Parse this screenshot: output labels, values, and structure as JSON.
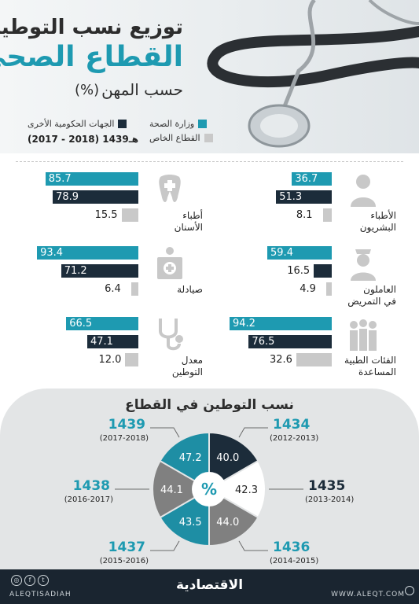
{
  "title": {
    "line1": "توزيع نسب التوطين في",
    "line2": "القطاع الصحي",
    "line3": "حسب المهن",
    "unit": "(%)"
  },
  "legend": {
    "moh": "وزارة الصحة",
    "gov": "الجهات الحكومية الأخرى",
    "private": "القطاع الخاص",
    "period": "(2017 - 2018) 1439هـ"
  },
  "colors": {
    "moh": "#1e9ab1",
    "gov": "#1c2c3a",
    "private": "#c9c9c9",
    "pie_teal": "#1e8ea4",
    "pie_navy": "#1c2c3a",
    "pie_gray": "#808080",
    "pie_light": "#ffffff"
  },
  "chart_data": [
    {
      "type": "bar",
      "series_names": [
        "وزارة الصحة",
        "الجهات الحكومية الأخرى",
        "القطاع الخاص"
      ],
      "groups": [
        {
          "label": "الأطباء\nالبشريون",
          "icon": "doctor-icon",
          "values": [
            36.7,
            51.3,
            8.1
          ],
          "labels": [
            "36.7",
            "51.3",
            "8.1"
          ]
        },
        {
          "label": "أطباء\nالأسنان",
          "icon": "tooth-icon",
          "values": [
            85.7,
            78.9,
            15.5
          ],
          "labels": [
            "85.7",
            "78.9",
            "15.5"
          ]
        },
        {
          "label": "العاملون\nفي التمريض",
          "icon": "nurse-icon",
          "values": [
            59.4,
            16.5,
            4.9
          ],
          "labels": [
            "59.4",
            "16.5",
            "4.9"
          ]
        },
        {
          "label": "صيادلة",
          "icon": "pharmacy-icon",
          "values": [
            93.4,
            71.2,
            6.4
          ],
          "labels": [
            "93.4",
            "71.2",
            "6.4"
          ]
        },
        {
          "label": "الفئات الطبية\nالمساعدة",
          "icon": "staff-icon",
          "values": [
            94.2,
            76.5,
            32.6
          ],
          "labels": [
            "94.2",
            "76.5",
            "32.6"
          ]
        },
        {
          "label": "معدل\nالتوطين",
          "icon": "stethoscope-icon",
          "values": [
            66.5,
            47.1,
            12.0
          ],
          "labels": [
            "66.5",
            "47.1",
            "12.0"
          ]
        }
      ]
    },
    {
      "type": "pie",
      "title": "نسب التوطين في القطاع",
      "center_label": "%",
      "slices": [
        {
          "year": "1434",
          "range": "(2012-2013)",
          "value": 40.0,
          "label": "40.0",
          "color": "#1c2c3a",
          "text_color": "#ffffff",
          "year_style": "teal"
        },
        {
          "year": "1435",
          "range": "(2013-2014)",
          "value": 42.3,
          "label": "42.3",
          "color": "#ffffff",
          "text_color": "#222222",
          "year_style": "dark"
        },
        {
          "year": "1436",
          "range": "(2014-2015)",
          "value": 44.0,
          "label": "44.0",
          "color": "#808080",
          "text_color": "#ffffff",
          "year_style": "teal"
        },
        {
          "year": "1437",
          "range": "(2015-2016)",
          "value": 43.5,
          "label": "43.5",
          "color": "#1e8ea4",
          "text_color": "#ffffff",
          "year_style": "teal"
        },
        {
          "year": "1438",
          "range": "(2016-2017)",
          "value": 44.1,
          "label": "44.1",
          "color": "#808080",
          "text_color": "#ffffff",
          "year_style": "teal"
        },
        {
          "year": "1439",
          "range": "(2017-2018)",
          "value": 47.2,
          "label": "47.2",
          "color": "#1e8ea4",
          "text_color": "#ffffff",
          "year_style": "teal"
        }
      ]
    }
  ],
  "footer": {
    "handle": "ALEQTISADIAH",
    "logo": "الاقتصادية",
    "site": "WWW.ALEQT.COM"
  }
}
